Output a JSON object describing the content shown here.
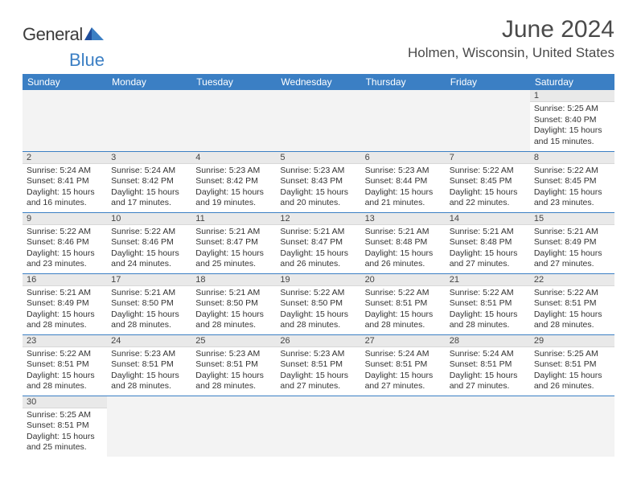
{
  "logo": {
    "main": "General",
    "sub": "Blue"
  },
  "title": "June 2024",
  "location": "Holmen, Wisconsin, United States",
  "theme": {
    "header_bg": "#3b7fc4",
    "header_fg": "#ffffff",
    "daynum_bg": "#e9e9e9",
    "border": "#3b7fc4",
    "empty_bg": "#f3f3f3",
    "title_fontsize": 30,
    "location_fontsize": 17,
    "cell_fontsize": 10.5
  },
  "days_of_week": [
    "Sunday",
    "Monday",
    "Tuesday",
    "Wednesday",
    "Thursday",
    "Friday",
    "Saturday"
  ],
  "weeks": [
    [
      null,
      null,
      null,
      null,
      null,
      null,
      {
        "n": "1",
        "sunrise": "5:25 AM",
        "sunset": "8:40 PM",
        "daylight": "15 hours and 15 minutes."
      }
    ],
    [
      {
        "n": "2",
        "sunrise": "5:24 AM",
        "sunset": "8:41 PM",
        "daylight": "15 hours and 16 minutes."
      },
      {
        "n": "3",
        "sunrise": "5:24 AM",
        "sunset": "8:42 PM",
        "daylight": "15 hours and 17 minutes."
      },
      {
        "n": "4",
        "sunrise": "5:23 AM",
        "sunset": "8:42 PM",
        "daylight": "15 hours and 19 minutes."
      },
      {
        "n": "5",
        "sunrise": "5:23 AM",
        "sunset": "8:43 PM",
        "daylight": "15 hours and 20 minutes."
      },
      {
        "n": "6",
        "sunrise": "5:23 AM",
        "sunset": "8:44 PM",
        "daylight": "15 hours and 21 minutes."
      },
      {
        "n": "7",
        "sunrise": "5:22 AM",
        "sunset": "8:45 PM",
        "daylight": "15 hours and 22 minutes."
      },
      {
        "n": "8",
        "sunrise": "5:22 AM",
        "sunset": "8:45 PM",
        "daylight": "15 hours and 23 minutes."
      }
    ],
    [
      {
        "n": "9",
        "sunrise": "5:22 AM",
        "sunset": "8:46 PM",
        "daylight": "15 hours and 23 minutes."
      },
      {
        "n": "10",
        "sunrise": "5:22 AM",
        "sunset": "8:46 PM",
        "daylight": "15 hours and 24 minutes."
      },
      {
        "n": "11",
        "sunrise": "5:21 AM",
        "sunset": "8:47 PM",
        "daylight": "15 hours and 25 minutes."
      },
      {
        "n": "12",
        "sunrise": "5:21 AM",
        "sunset": "8:47 PM",
        "daylight": "15 hours and 26 minutes."
      },
      {
        "n": "13",
        "sunrise": "5:21 AM",
        "sunset": "8:48 PM",
        "daylight": "15 hours and 26 minutes."
      },
      {
        "n": "14",
        "sunrise": "5:21 AM",
        "sunset": "8:48 PM",
        "daylight": "15 hours and 27 minutes."
      },
      {
        "n": "15",
        "sunrise": "5:21 AM",
        "sunset": "8:49 PM",
        "daylight": "15 hours and 27 minutes."
      }
    ],
    [
      {
        "n": "16",
        "sunrise": "5:21 AM",
        "sunset": "8:49 PM",
        "daylight": "15 hours and 28 minutes."
      },
      {
        "n": "17",
        "sunrise": "5:21 AM",
        "sunset": "8:50 PM",
        "daylight": "15 hours and 28 minutes."
      },
      {
        "n": "18",
        "sunrise": "5:21 AM",
        "sunset": "8:50 PM",
        "daylight": "15 hours and 28 minutes."
      },
      {
        "n": "19",
        "sunrise": "5:22 AM",
        "sunset": "8:50 PM",
        "daylight": "15 hours and 28 minutes."
      },
      {
        "n": "20",
        "sunrise": "5:22 AM",
        "sunset": "8:51 PM",
        "daylight": "15 hours and 28 minutes."
      },
      {
        "n": "21",
        "sunrise": "5:22 AM",
        "sunset": "8:51 PM",
        "daylight": "15 hours and 28 minutes."
      },
      {
        "n": "22",
        "sunrise": "5:22 AM",
        "sunset": "8:51 PM",
        "daylight": "15 hours and 28 minutes."
      }
    ],
    [
      {
        "n": "23",
        "sunrise": "5:22 AM",
        "sunset": "8:51 PM",
        "daylight": "15 hours and 28 minutes."
      },
      {
        "n": "24",
        "sunrise": "5:23 AM",
        "sunset": "8:51 PM",
        "daylight": "15 hours and 28 minutes."
      },
      {
        "n": "25",
        "sunrise": "5:23 AM",
        "sunset": "8:51 PM",
        "daylight": "15 hours and 28 minutes."
      },
      {
        "n": "26",
        "sunrise": "5:23 AM",
        "sunset": "8:51 PM",
        "daylight": "15 hours and 27 minutes."
      },
      {
        "n": "27",
        "sunrise": "5:24 AM",
        "sunset": "8:51 PM",
        "daylight": "15 hours and 27 minutes."
      },
      {
        "n": "28",
        "sunrise": "5:24 AM",
        "sunset": "8:51 PM",
        "daylight": "15 hours and 27 minutes."
      },
      {
        "n": "29",
        "sunrise": "5:25 AM",
        "sunset": "8:51 PM",
        "daylight": "15 hours and 26 minutes."
      }
    ],
    [
      {
        "n": "30",
        "sunrise": "5:25 AM",
        "sunset": "8:51 PM",
        "daylight": "15 hours and 25 minutes."
      },
      null,
      null,
      null,
      null,
      null,
      null
    ]
  ],
  "labels": {
    "sunrise": "Sunrise:",
    "sunset": "Sunset:",
    "daylight": "Daylight:"
  }
}
